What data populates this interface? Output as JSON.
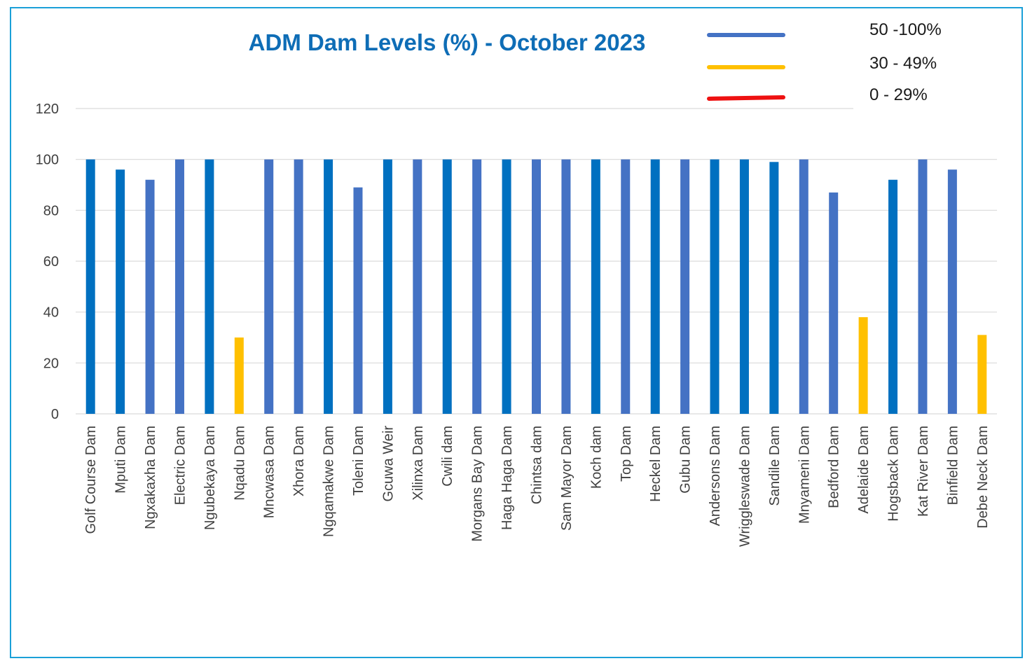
{
  "chart_data": {
    "type": "bar",
    "title": "ADM Dam Levels (%) - October 2023",
    "title_color": "#0e6db6",
    "xlabel": "",
    "ylabel": "",
    "ylim": [
      0,
      120
    ],
    "yticks": [
      0,
      20,
      40,
      60,
      80,
      100,
      120
    ],
    "grid": true,
    "categories": [
      "Golf Course Dam",
      "Mputi Dam",
      "Ngxakaxha Dam",
      "Electric Dam",
      "Ngubekaya Dam",
      "Nqadu Dam",
      "Mncwasa Dam",
      "Xhora Dam",
      "Ngqamakwe Dam",
      "Toleni Dam",
      "Gcuwa Weir",
      "Xilinxa Dam",
      "Cwili dam",
      "Morgans Bay Dam",
      "Haga Haga Dam",
      "Chintsa dam",
      "Sam Mayor Dam",
      "Koch dam",
      "Top Dam",
      "Heckel Dam",
      "Gubu Dam",
      "Andersons Dam",
      "Wriggleswade Dam",
      "Sandile Dam",
      "Mnyameni Dam",
      "Bedford Dam",
      "Adelaide Dam",
      "Hogsback Dam",
      "Kat River Dam",
      "Binfield Dam",
      "Debe Neck Dam"
    ],
    "values": [
      100,
      96,
      92,
      100,
      100,
      30,
      100,
      100,
      100,
      89,
      100,
      100,
      100,
      100,
      100,
      100,
      100,
      100,
      100,
      100,
      100,
      100,
      100,
      99,
      100,
      87,
      38,
      92,
      100,
      96,
      31
    ],
    "bar_colors": [
      "#0070c0",
      "#0070c0",
      "#4472c4",
      "#4472c4",
      "#0070c0",
      "#ffc000",
      "#4472c4",
      "#4472c4",
      "#0070c0",
      "#4472c4",
      "#0070c0",
      "#4472c4",
      "#0070c0",
      "#4472c4",
      "#0070c0",
      "#4472c4",
      "#4472c4",
      "#0070c0",
      "#4472c4",
      "#0070c0",
      "#4472c4",
      "#0070c0",
      "#0070c0",
      "#0070c0",
      "#4472c4",
      "#4472c4",
      "#ffc000",
      "#0070c0",
      "#4472c4",
      "#4472c4",
      "#ffc000"
    ],
    "legend": {
      "placement": "top-right",
      "entries": [
        {
          "label": "50 -100%",
          "color": "#4472c4"
        },
        {
          "label": "30 - 49%",
          "color": "#ffc000"
        },
        {
          "label": "0 - 29%",
          "color": "#ee1111"
        }
      ]
    }
  }
}
